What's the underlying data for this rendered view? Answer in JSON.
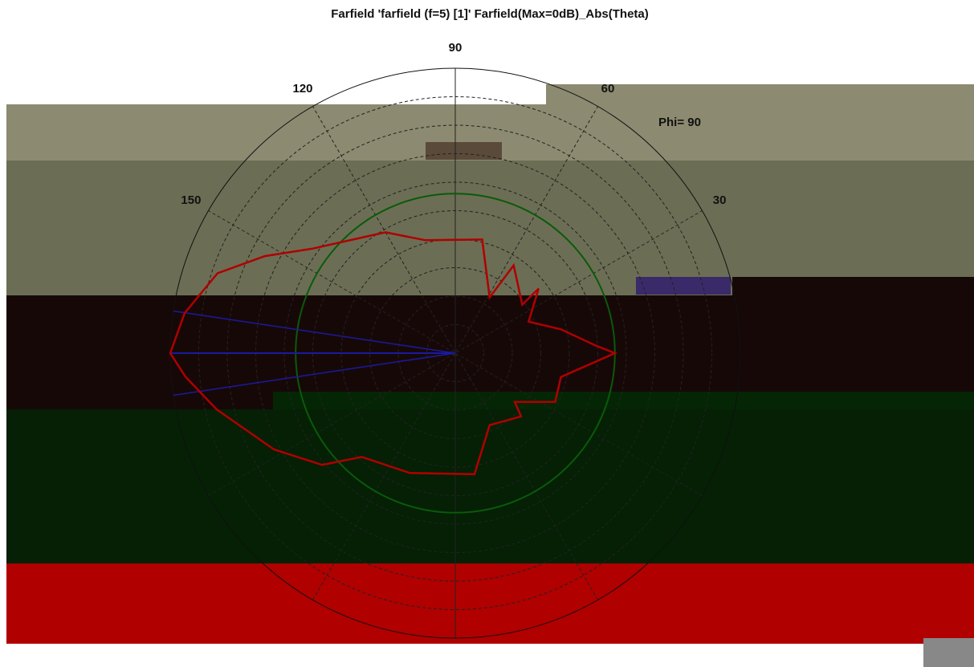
{
  "chart_data": {
    "type": "polar",
    "title": "Farfield 'farfield (f=5) [1]' Farfield(Max=0dB)_Abs(Theta)",
    "annotation": "Phi= 90",
    "rlim": [
      -40,
      0
    ],
    "rticks": [
      -36,
      -32,
      -28,
      -24,
      -20,
      -16,
      -12,
      -8,
      -4
    ],
    "angle_ticks": [
      30,
      60,
      90,
      120,
      150
    ],
    "series": [
      {
        "color": "#b00000",
        "x": [
          180,
          171.6,
          161.4,
          153,
          143.7,
          134.4,
          120,
          104.8,
          76.7,
          58.4,
          56.4,
          35.9,
          37.8,
          23.3,
          12.7,
          3.3,
          0,
          -12.7,
          -26,
          -39.4,
          -43.9,
          -64.5,
          -81,
          -110.8,
          -132,
          -140,
          -152,
          -166.7,
          -175
        ],
        "values": [
          0,
          -1.6,
          -4.8,
          -10,
          -15.2,
          -18,
          -20.4,
          -23.6,
          -23.6,
          -30.8,
          -25.2,
          -28.4,
          -25.2,
          -28.8,
          -24.8,
          -20.4,
          -17.6,
          -24.8,
          -24.4,
          -29.2,
          -27.2,
          -28.8,
          -22.8,
          -22,
          -20.4,
          -15.6,
          -11.2,
          -5.6,
          -2
        ]
      }
    ],
    "main_lobe_direction": 180,
    "beam_lines": [
      171.5,
      188.5
    ],
    "reference_level": -17.6,
    "colors": {
      "main_lobe": "#1a1aa0",
      "reference": "#0a5a0a"
    }
  }
}
